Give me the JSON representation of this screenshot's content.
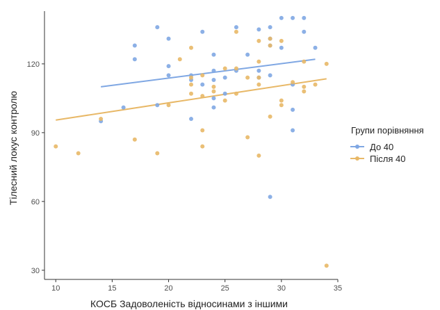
{
  "chart_data": {
    "type": "scatter",
    "xlabel": "КОСБ  Задоволеність відносинами з іншими",
    "ylabel": "Тілесний локус контролю",
    "xlim": [
      9,
      35
    ],
    "ylim": [
      26,
      143
    ],
    "xticks": [
      10,
      15,
      20,
      25,
      30,
      35
    ],
    "yticks": [
      30,
      60,
      90,
      120
    ],
    "legend": {
      "title": "Групи порівняння",
      "position": "right"
    },
    "series": [
      {
        "name": "До 40",
        "color": "#7fa7e3",
        "trend": [
          [
            14,
            110
          ],
          [
            33,
            122
          ]
        ],
        "points": [
          [
            14,
            95
          ],
          [
            16,
            101
          ],
          [
            17,
            128
          ],
          [
            17,
            122
          ],
          [
            19,
            136
          ],
          [
            19,
            102
          ],
          [
            20,
            131
          ],
          [
            20,
            119
          ],
          [
            20,
            115
          ],
          [
            22,
            115
          ],
          [
            22,
            113
          ],
          [
            22,
            96
          ],
          [
            23,
            134
          ],
          [
            23,
            111
          ],
          [
            24,
            124
          ],
          [
            24,
            117
          ],
          [
            24,
            113
          ],
          [
            24,
            105
          ],
          [
            24,
            101
          ],
          [
            25,
            114
          ],
          [
            25,
            107
          ],
          [
            26,
            136
          ],
          [
            26,
            117
          ],
          [
            27,
            124
          ],
          [
            28,
            135
          ],
          [
            28,
            117
          ],
          [
            28,
            114
          ],
          [
            29,
            136
          ],
          [
            29,
            131
          ],
          [
            29,
            128
          ],
          [
            29,
            115
          ],
          [
            29,
            62
          ],
          [
            30,
            140
          ],
          [
            30,
            127
          ],
          [
            31,
            140
          ],
          [
            31,
            111
          ],
          [
            31,
            100
          ],
          [
            31,
            91
          ],
          [
            32,
            140
          ],
          [
            32,
            134
          ],
          [
            33,
            127
          ]
        ]
      },
      {
        "name": "Після 40",
        "color": "#e8b867",
        "trend": [
          [
            10,
            95.5
          ],
          [
            34,
            113.5
          ]
        ],
        "points": [
          [
            10,
            84
          ],
          [
            12,
            81
          ],
          [
            14,
            96
          ],
          [
            17,
            87
          ],
          [
            19,
            81
          ],
          [
            20,
            102
          ],
          [
            21,
            122
          ],
          [
            22,
            127
          ],
          [
            22,
            114
          ],
          [
            22,
            111
          ],
          [
            22,
            107
          ],
          [
            23,
            115
          ],
          [
            23,
            106
          ],
          [
            23,
            91
          ],
          [
            23,
            84
          ],
          [
            24,
            110
          ],
          [
            24,
            108
          ],
          [
            25,
            118
          ],
          [
            25,
            104
          ],
          [
            26,
            134
          ],
          [
            26,
            118
          ],
          [
            26,
            107
          ],
          [
            27,
            114
          ],
          [
            27,
            88
          ],
          [
            28,
            130
          ],
          [
            28,
            121
          ],
          [
            28,
            114
          ],
          [
            28,
            111
          ],
          [
            28,
            80
          ],
          [
            29,
            131
          ],
          [
            29,
            128
          ],
          [
            29,
            97
          ],
          [
            30,
            130
          ],
          [
            30,
            104
          ],
          [
            30,
            102
          ],
          [
            31,
            112
          ],
          [
            32,
            121
          ],
          [
            32,
            110
          ],
          [
            32,
            108
          ],
          [
            33,
            111
          ],
          [
            34,
            120
          ],
          [
            34,
            32
          ]
        ]
      }
    ]
  }
}
